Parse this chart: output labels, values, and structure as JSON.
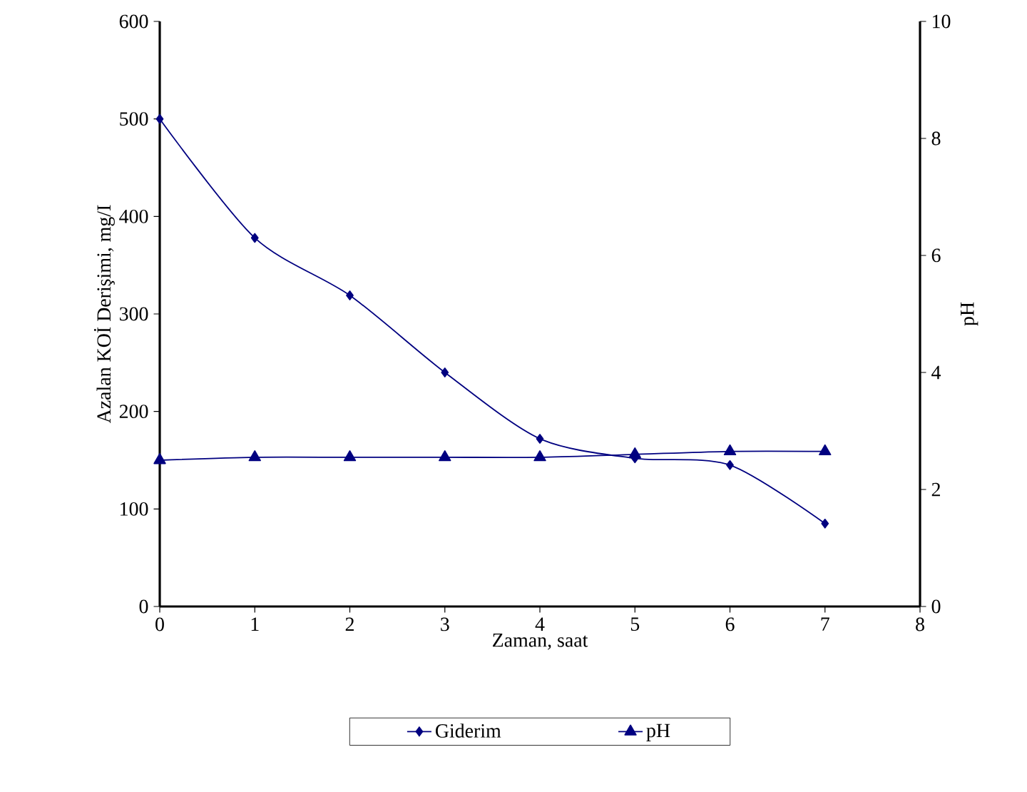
{
  "chart_data": {
    "type": "line",
    "xlabel": "Zaman, saat",
    "ylabel": "Azalan KOİ Derişimi, mg/I",
    "y2label": "pH",
    "x": [
      0,
      1,
      2,
      3,
      4,
      5,
      6,
      7
    ],
    "series": [
      {
        "name": "Giderim",
        "color": "#000080",
        "marker": "diamond",
        "values": [
          500,
          378,
          319,
          240,
          172,
          152,
          145,
          85
        ]
      },
      {
        "name": "pH",
        "color": "#000080",
        "marker": "triangle",
        "axis": "y2",
        "values": [
          2.5,
          2.55,
          2.55,
          2.55,
          2.55,
          2.6,
          2.65,
          2.65
        ]
      }
    ],
    "xlim": [
      0,
      8
    ],
    "xticks": [
      0,
      1,
      2,
      3,
      4,
      5,
      6,
      7,
      8
    ],
    "ylim": [
      0,
      600
    ],
    "yticks": [
      0,
      100,
      200,
      300,
      400,
      500,
      600
    ],
    "y2lim": [
      0,
      10
    ],
    "y2ticks": [
      0,
      2,
      4,
      6,
      8,
      10
    ],
    "grid": false,
    "legend": "bottom",
    "line_style": "solid"
  }
}
